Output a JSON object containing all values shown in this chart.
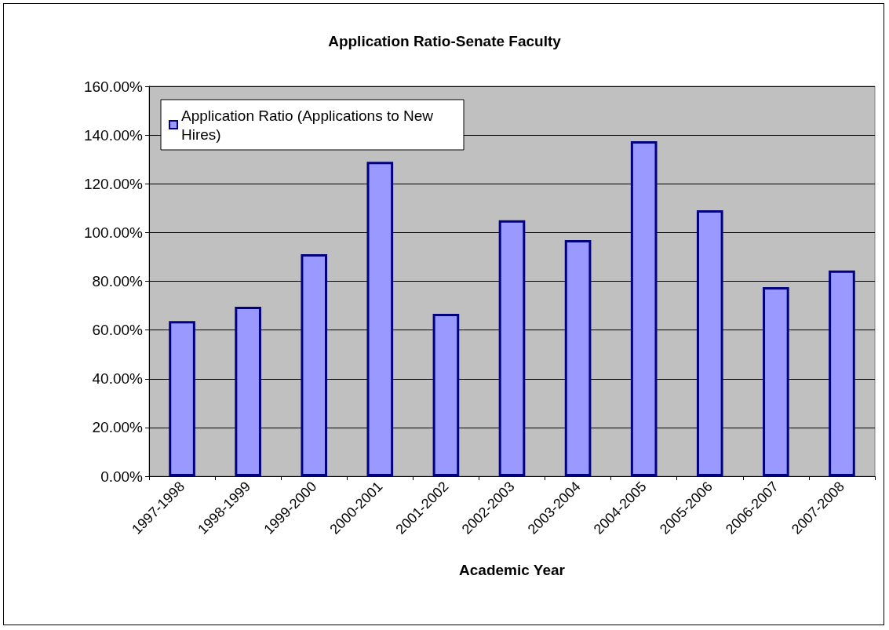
{
  "chart_data": {
    "type": "bar",
    "title": "Application Ratio-Senate Faculty",
    "xlabel": "Academic Year",
    "categories": [
      "1997-1998",
      "1998-1999",
      "1999-2000",
      "2000-2001",
      "2001-2002",
      "2002-2003",
      "2003-2004",
      "2004-2005",
      "2005-2006",
      "2006-2007",
      "2007-2008"
    ],
    "series": [
      {
        "name": "Application Ratio (Applications to New Hires)",
        "color": "#9999ff",
        "values": [
          63.7,
          69.5,
          91.1,
          129,
          66.6,
          105,
          96.9,
          137.5,
          109.1,
          77.6,
          84.4
        ]
      }
    ],
    "ylim": [
      0,
      160
    ],
    "yticks": [
      {
        "value": 0,
        "label": "0.00%"
      },
      {
        "value": 20,
        "label": "20.00%"
      },
      {
        "value": 40,
        "label": "40.00%"
      },
      {
        "value": 60,
        "label": "60.00%"
      },
      {
        "value": 80,
        "label": "80.00%"
      },
      {
        "value": 100,
        "label": "100.00%"
      },
      {
        "value": 120,
        "label": "120.00%"
      },
      {
        "value": 140,
        "label": "140.00%"
      },
      {
        "value": 160,
        "label": "160.00%"
      }
    ],
    "grid": "y",
    "legend": "top left"
  }
}
